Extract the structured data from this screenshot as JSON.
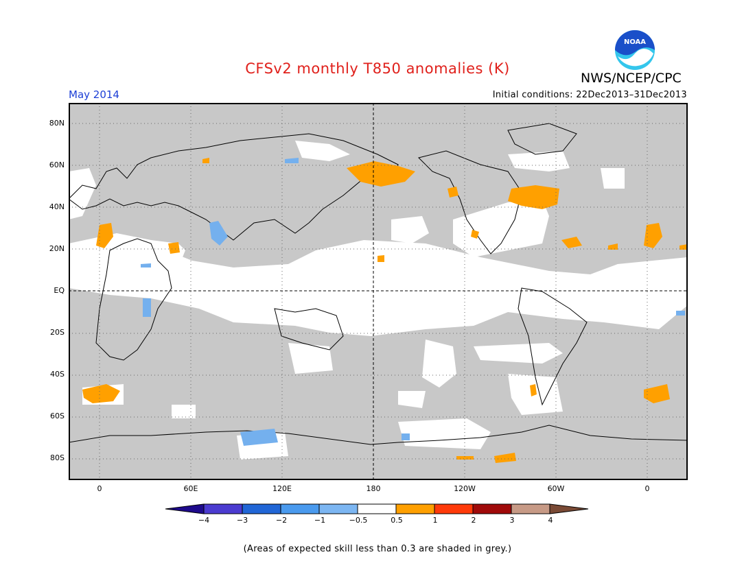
{
  "title": "CFSv2 monthly T850 anomalies (K)",
  "agency": "NWS/NCEP/CPC",
  "logo_text": "NOAA",
  "month_label": "May 2014",
  "initial_conditions": "Initial conditions: 22Dec2013–31Dec2013",
  "lat_labels": [
    "80N",
    "60N",
    "40N",
    "20N",
    "EQ",
    "20S",
    "40S",
    "60S",
    "80S"
  ],
  "lon_labels": [
    "0",
    "60E",
    "120E",
    "180",
    "120W",
    "60W",
    "0"
  ],
  "colorbar": {
    "labels": [
      "−4",
      "−3",
      "−2",
      "−1",
      "−0.5",
      "0.5",
      "1",
      "2",
      "3",
      "4"
    ],
    "colors": [
      "#1e0a8c",
      "#4b3bd0",
      "#2166d6",
      "#4a9aee",
      "#7cb6f2",
      "#ffffff",
      "#ffa000",
      "#ff3a0a",
      "#a00a0a",
      "#c79a86",
      "#7a4a35"
    ]
  },
  "colors": {
    "skill_grey": "#c8c8c8",
    "warm_anomaly": "#ffa000",
    "cool_anomaly": "#74b0ee",
    "title_red": "#e0201b",
    "month_blue": "#1c3fd6",
    "logo_blue": "#1a4fc9",
    "logo_cyan": "#34c6ec"
  },
  "footnote": "(Areas of expected skill less than 0.3 are shaded in grey.)"
}
